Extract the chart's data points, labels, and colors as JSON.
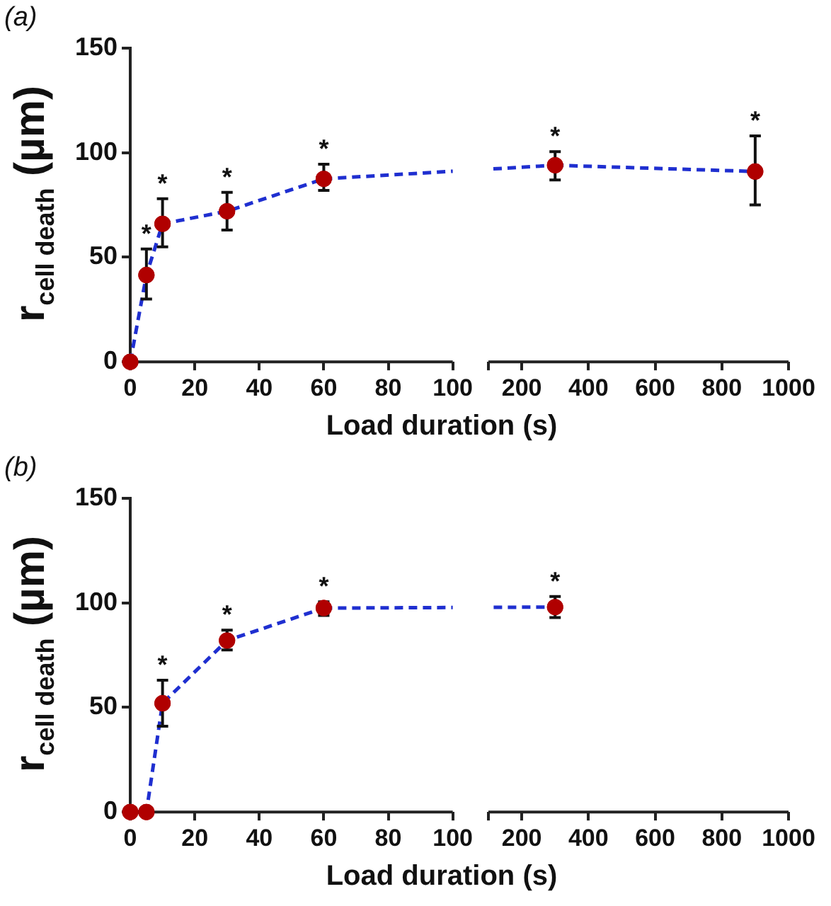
{
  "chart_data": [
    {
      "type": "line",
      "title": "(a)",
      "xlabel": "Load duration (s)",
      "ylabel": "r$_{cell death}$ (µm)",
      "x": [
        0,
        5,
        10,
        30,
        60
      ],
      "values": [
        0,
        41.5,
        66,
        72,
        87.5
      ],
      "errors": [
        null,
        [
          30,
          54
        ],
        [
          55,
          78
        ],
        [
          63,
          81
        ],
        [
          82,
          94.5
        ]
      ],
      "color": "#1f2fd0",
      "colors": [
        "#b00000",
        "#b00000",
        "#b00000",
        "#b00000",
        "#b00000"
      ],
      "line_style": "dashed",
      "marker": "circle",
      "grid": false,
      "xlim": [
        0,
        100
      ],
      "xticks": [
        0,
        20,
        40,
        60,
        80,
        100
      ],
      "ylim": [
        0,
        150
      ],
      "yticks": [
        0,
        50,
        100,
        150
      ],
      "annotations": [
        {
          "text": "*",
          "x": 5,
          "y": 41.5
        },
        {
          "text": "*",
          "x": 10,
          "y": 66
        },
        {
          "text": "*",
          "x": 30,
          "y": 72
        },
        {
          "text": "*",
          "x": 60,
          "y": 87.5
        }
      ]
    },
    {
      "type": "line",
      "x": [
        300,
        900
      ],
      "values": [
        94,
        91
      ],
      "errors": [
        [
          87,
          100.5
        ],
        [
          75,
          108
        ]
      ],
      "color": "#1f2fd0",
      "colors": [
        "#b00000",
        "#b00000"
      ],
      "line_style": "dashed",
      "marker": "circle",
      "grid": false,
      "xlim": [
        100,
        1000
      ],
      "xticks": [
        {
          "value": 100,
          "label": null
        },
        200,
        400,
        600,
        800,
        1000
      ],
      "ylim": [
        0,
        150
      ],
      "tick_labels": "x",
      "annotations": [
        {
          "text": "*",
          "x": 300,
          "y": 94
        },
        {
          "text": "*",
          "x": 900,
          "y": 91
        }
      ]
    },
    {
      "type": "line",
      "title": "(b)",
      "xlabel": "Load duration (s)",
      "ylabel": "r$_{cell death}$ (µm)",
      "x": [
        0,
        5,
        10,
        30,
        60
      ],
      "values": [
        0,
        0,
        52,
        82,
        97.5
      ],
      "errors": [
        null,
        null,
        [
          41,
          63
        ],
        [
          77.5,
          87
        ],
        [
          94,
          100.5
        ]
      ],
      "color": "#1f2fd0",
      "colors": [
        "#b00000",
        "#b00000",
        "#b00000",
        "#b00000",
        "#b00000"
      ],
      "line_style": "dashed",
      "marker": "circle",
      "grid": false,
      "xlim": [
        0,
        100
      ],
      "xticks": [
        0,
        20,
        40,
        60,
        80,
        100
      ],
      "ylim": [
        0,
        150
      ],
      "yticks": [
        0,
        50,
        100,
        150
      ],
      "annotations": [
        {
          "text": "*",
          "x": 10,
          "y": 52
        },
        {
          "text": "*",
          "x": 30,
          "y": 82
        },
        {
          "text": "*",
          "x": 60,
          "y": 97.5
        }
      ]
    },
    {
      "type": "line",
      "x": [
        300
      ],
      "values": [
        98
      ],
      "errors": [
        [
          93,
          103
        ]
      ],
      "color": "#1f2fd0",
      "colors": [
        "#b00000"
      ],
      "line_style": "dashed",
      "marker": "circle",
      "grid": false,
      "xlim": [
        100,
        1000
      ],
      "xticks": [
        {
          "value": 100,
          "label": null
        },
        200,
        400,
        600,
        800,
        1000
      ],
      "ylim": [
        0,
        150
      ],
      "tick_labels": "x",
      "annotations": [
        {
          "text": "*",
          "x": 300,
          "y": 98
        }
      ]
    }
  ]
}
